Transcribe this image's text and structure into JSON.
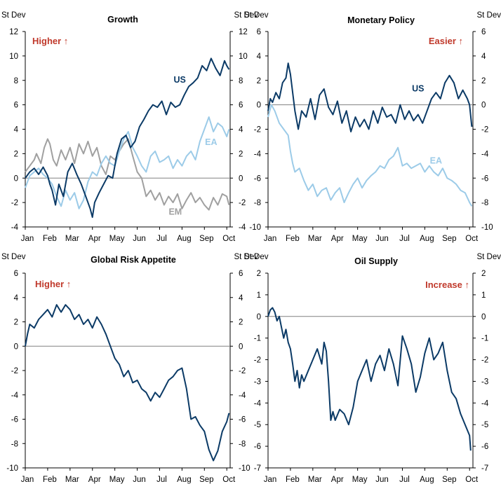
{
  "colors": {
    "us": "#0b3a66",
    "ea": "#9ccbe8",
    "em": "#a0a0a0",
    "axis": "#000000",
    "zero": "#808080",
    "annotation": "#c0392b"
  },
  "chart_data": [
    {
      "type": "line",
      "title": "Growth",
      "ylabel_left": "St Dev",
      "ylabel_right": "St Dev",
      "ylim": [
        -4,
        12
      ],
      "yticks": [
        -4,
        -2,
        0,
        2,
        4,
        6,
        8,
        10,
        12
      ],
      "months": [
        "Jan",
        "Feb",
        "Mar",
        "Apr",
        "May",
        "Jun",
        "Jul",
        "Aug",
        "Sep",
        "Oct"
      ],
      "annotation": "Higher ↑",
      "series": [
        {
          "name": "EM",
          "color": "#a0a0a0",
          "x": [
            0,
            0.2,
            0.4,
            0.5,
            0.7,
            0.85,
            1.0,
            1.1,
            1.25,
            1.4,
            1.6,
            1.8,
            2.0,
            2.2,
            2.4,
            2.6,
            2.8,
            3.0,
            3.2,
            3.4,
            3.6,
            3.8,
            4.0,
            4.2,
            4.4,
            4.6,
            4.8,
            5.0,
            5.2,
            5.4,
            5.6,
            5.8,
            6.0,
            6.2,
            6.4,
            6.6,
            6.8,
            7.0,
            7.2,
            7.4,
            7.6,
            7.8,
            8.0,
            8.2,
            8.4,
            8.6,
            8.8,
            9.0,
            9.1
          ],
          "values": [
            0.5,
            1.0,
            1.5,
            2.0,
            1.2,
            2.5,
            3.2,
            2.8,
            1.5,
            1.0,
            2.3,
            1.5,
            2.5,
            1.2,
            2.8,
            2.0,
            3.0,
            1.8,
            2.5,
            1.0,
            0.3,
            1.8,
            1.5,
            2.2,
            2.8,
            3.2,
            1.8,
            0.5,
            0.0,
            -1.5,
            -1.0,
            -1.8,
            -1.2,
            -2.2,
            -1.5,
            -2.0,
            -1.3,
            -2.5,
            -1.8,
            -1.2,
            -2.0,
            -1.6,
            -2.2,
            -2.6,
            -1.6,
            -2.2,
            -1.3,
            -1.5,
            -2.2
          ]
        },
        {
          "name": "EA",
          "color": "#9ccbe8",
          "x": [
            0,
            0.2,
            0.4,
            0.6,
            0.8,
            1.0,
            1.2,
            1.4,
            1.6,
            1.8,
            2.0,
            2.2,
            2.4,
            2.6,
            2.8,
            3.0,
            3.2,
            3.4,
            3.6,
            3.8,
            4.0,
            4.2,
            4.4,
            4.6,
            4.8,
            5.0,
            5.2,
            5.4,
            5.6,
            5.8,
            6.0,
            6.2,
            6.4,
            6.6,
            6.8,
            7.0,
            7.2,
            7.4,
            7.6,
            7.8,
            8.0,
            8.2,
            8.4,
            8.6,
            8.8,
            9.0,
            9.1
          ],
          "values": [
            -0.8,
            0.2,
            0.5,
            0.8,
            0.3,
            0.0,
            -0.5,
            -1.5,
            -2.3,
            -1.0,
            -1.8,
            -1.2,
            -2.5,
            -1.8,
            -0.3,
            0.5,
            0.2,
            1.2,
            1.8,
            1.2,
            1.0,
            2.2,
            3.2,
            3.8,
            2.5,
            1.8,
            1.0,
            0.5,
            1.8,
            2.2,
            1.3,
            1.5,
            1.8,
            0.8,
            1.5,
            1.0,
            1.8,
            2.2,
            1.5,
            3.0,
            4.0,
            5.0,
            3.8,
            4.5,
            4.2,
            3.4,
            4.0
          ]
        },
        {
          "name": "US",
          "color": "#0b3a66",
          "x": [
            0,
            0.2,
            0.4,
            0.6,
            0.8,
            1.0,
            1.1,
            1.2,
            1.35,
            1.5,
            1.7,
            1.9,
            2.1,
            2.3,
            2.5,
            2.7,
            2.9,
            3.0,
            3.1,
            3.3,
            3.5,
            3.7,
            3.9,
            4.1,
            4.3,
            4.5,
            4.7,
            4.9,
            5.1,
            5.3,
            5.5,
            5.7,
            5.9,
            6.1,
            6.3,
            6.5,
            6.7,
            6.9,
            7.1,
            7.3,
            7.5,
            7.7,
            7.9,
            8.1,
            8.3,
            8.5,
            8.7,
            8.9,
            9.0,
            9.1
          ],
          "values": [
            0.0,
            0.5,
            0.8,
            0.3,
            0.9,
            0.2,
            -0.5,
            -1.0,
            -2.2,
            -0.5,
            -1.5,
            0.5,
            1.2,
            0.3,
            -0.5,
            -1.5,
            -2.5,
            -3.2,
            -2.0,
            -1.2,
            -0.5,
            0.2,
            0.0,
            2.0,
            3.2,
            3.5,
            2.5,
            3.0,
            4.2,
            4.8,
            5.5,
            6.0,
            5.8,
            6.3,
            5.2,
            6.2,
            5.8,
            6.0,
            6.8,
            7.5,
            7.8,
            8.2,
            9.2,
            8.8,
            9.8,
            9.0,
            8.4,
            9.6,
            9.2,
            8.9
          ]
        }
      ],
      "labels": [
        {
          "text": "US",
          "x": 6.9,
          "y": 7.8
        },
        {
          "text": "EA",
          "x": 8.3,
          "y": 2.7
        },
        {
          "text": "EM",
          "x": 6.7,
          "y": -3.0
        }
      ]
    },
    {
      "type": "line",
      "title": "Monetary Policy",
      "ylabel_left": "St Dev",
      "ylabel_right": "St Dev",
      "ylim": [
        -10,
        6
      ],
      "yticks": [
        -10,
        -8,
        -6,
        -4,
        -2,
        0,
        2,
        4,
        6
      ],
      "months": [
        "Jan",
        "Feb",
        "Mar",
        "Apr",
        "May",
        "Jun",
        "Jul",
        "Aug",
        "Sep",
        "Oct"
      ],
      "annotation": "Easier ↑",
      "series": [
        {
          "name": "EA",
          "color": "#9ccbe8",
          "x": [
            0,
            0.15,
            0.3,
            0.5,
            0.7,
            0.9,
            1.0,
            1.1,
            1.2,
            1.4,
            1.6,
            1.8,
            2.0,
            2.2,
            2.4,
            2.6,
            2.8,
            3.0,
            3.2,
            3.4,
            3.6,
            3.8,
            4.0,
            4.2,
            4.4,
            4.6,
            4.8,
            5.0,
            5.2,
            5.4,
            5.6,
            5.8,
            6.0,
            6.2,
            6.4,
            6.6,
            6.8,
            7.0,
            7.2,
            7.4,
            7.6,
            7.8,
            8.0,
            8.2,
            8.4,
            8.6,
            8.8,
            9.0,
            9.1
          ],
          "values": [
            -1.0,
            0.0,
            -0.5,
            -1.5,
            -2.0,
            -2.5,
            -3.8,
            -4.8,
            -5.5,
            -5.2,
            -6.2,
            -7.0,
            -6.5,
            -7.5,
            -7.0,
            -6.8,
            -7.8,
            -7.2,
            -6.8,
            -8.0,
            -7.2,
            -6.5,
            -6.0,
            -6.8,
            -6.2,
            -5.8,
            -5.5,
            -5.0,
            -5.2,
            -4.5,
            -4.2,
            -3.5,
            -5.0,
            -4.8,
            -5.2,
            -5.0,
            -4.8,
            -5.5,
            -5.0,
            -5.5,
            -5.8,
            -5.2,
            -6.0,
            -6.2,
            -6.5,
            -7.0,
            -7.2,
            -8.0,
            -8.3
          ]
        },
        {
          "name": "US",
          "color": "#0b3a66",
          "x": [
            0,
            0.1,
            0.2,
            0.35,
            0.5,
            0.65,
            0.8,
            0.9,
            1.0,
            1.1,
            1.2,
            1.35,
            1.5,
            1.7,
            1.9,
            2.1,
            2.3,
            2.5,
            2.7,
            2.9,
            3.1,
            3.3,
            3.5,
            3.7,
            3.9,
            4.1,
            4.3,
            4.5,
            4.7,
            4.9,
            5.1,
            5.3,
            5.5,
            5.7,
            5.9,
            6.1,
            6.3,
            6.5,
            6.7,
            6.9,
            7.1,
            7.3,
            7.5,
            7.7,
            7.9,
            8.1,
            8.3,
            8.5,
            8.7,
            8.9,
            9.0,
            9.1
          ],
          "values": [
            -0.5,
            0.5,
            0.2,
            1.0,
            0.5,
            1.8,
            2.2,
            3.4,
            2.5,
            1.0,
            -0.5,
            -2.0,
            -0.5,
            -1.0,
            0.5,
            -1.2,
            0.8,
            1.3,
            -0.2,
            -0.8,
            0.3,
            -1.5,
            -0.5,
            -2.2,
            -1.0,
            -1.8,
            -1.2,
            -2.0,
            -0.5,
            -1.5,
            -0.2,
            -1.0,
            -0.8,
            -1.5,
            0.0,
            -1.2,
            -0.5,
            -1.3,
            -0.8,
            -1.5,
            -0.5,
            0.5,
            1.0,
            0.5,
            1.8,
            2.4,
            1.8,
            0.5,
            1.2,
            0.5,
            0.0,
            -1.8
          ]
        }
      ],
      "labels": [
        {
          "text": "US",
          "x": 6.7,
          "y": 1.1
        },
        {
          "text": "EA",
          "x": 7.5,
          "y": -4.8
        }
      ]
    },
    {
      "type": "line",
      "title": "Global Risk  Appetite",
      "ylabel_left": "St Dev",
      "ylabel_right": "St Dev",
      "ylim": [
        -10,
        6
      ],
      "yticks": [
        -10,
        -8,
        -6,
        -4,
        -2,
        0,
        2,
        4,
        6
      ],
      "months": [
        "Jan",
        "Feb",
        "Mar",
        "Apr",
        "May",
        "Jun",
        "Jul",
        "Aug",
        "Sep",
        "Oct"
      ],
      "annotation": "Higher ↑",
      "series": [
        {
          "name": "Global Risk Appetite",
          "color": "#0b3a66",
          "x": [
            0,
            0.1,
            0.2,
            0.4,
            0.6,
            0.8,
            1.0,
            1.2,
            1.4,
            1.6,
            1.8,
            2.0,
            2.2,
            2.4,
            2.6,
            2.8,
            3.0,
            3.2,
            3.4,
            3.6,
            3.8,
            4.0,
            4.2,
            4.4,
            4.6,
            4.8,
            5.0,
            5.2,
            5.4,
            5.6,
            5.8,
            6.0,
            6.2,
            6.4,
            6.6,
            6.8,
            7.0,
            7.2,
            7.4,
            7.6,
            7.8,
            8.0,
            8.2,
            8.4,
            8.6,
            8.8,
            9.0,
            9.1
          ],
          "values": [
            0.0,
            1.0,
            1.8,
            1.5,
            2.2,
            2.6,
            3.0,
            2.4,
            3.4,
            2.8,
            3.4,
            3.0,
            2.2,
            2.6,
            1.8,
            2.2,
            1.5,
            2.4,
            1.8,
            1.0,
            0.0,
            -1.0,
            -1.5,
            -2.5,
            -2.0,
            -3.0,
            -2.8,
            -3.5,
            -3.8,
            -4.5,
            -3.8,
            -4.2,
            -3.5,
            -2.8,
            -2.5,
            -2.0,
            -1.8,
            -3.5,
            -6.0,
            -5.8,
            -6.5,
            -7.0,
            -8.5,
            -9.4,
            -8.6,
            -7.0,
            -6.2,
            -5.5
          ]
        }
      ],
      "labels": []
    },
    {
      "type": "line",
      "title": "Oil Supply",
      "ylabel_left": "St Dev",
      "ylabel_right": "St Dev",
      "ylim": [
        -7,
        2
      ],
      "yticks": [
        -7,
        -6,
        -5,
        -4,
        -3,
        -2,
        -1,
        0,
        1,
        2
      ],
      "months": [
        "Jan",
        "Feb",
        "Mar",
        "Apr",
        "May",
        "Jun",
        "Jul",
        "Aug",
        "Sep",
        "Oct"
      ],
      "annotation": "Increase ↑",
      "series": [
        {
          "name": "Oil Supply",
          "color": "#0b3a66",
          "x": [
            0,
            0.1,
            0.2,
            0.3,
            0.4,
            0.5,
            0.6,
            0.7,
            0.8,
            0.9,
            1.0,
            1.1,
            1.2,
            1.3,
            1.4,
            1.5,
            1.6,
            1.8,
            2.0,
            2.2,
            2.4,
            2.5,
            2.6,
            2.7,
            2.8,
            2.9,
            3.0,
            3.2,
            3.4,
            3.6,
            3.8,
            4.0,
            4.2,
            4.4,
            4.6,
            4.8,
            5.0,
            5.2,
            5.4,
            5.6,
            5.8,
            6.0,
            6.2,
            6.4,
            6.6,
            6.8,
            7.0,
            7.2,
            7.4,
            7.6,
            7.8,
            8.0,
            8.2,
            8.4,
            8.6,
            8.8,
            9.0,
            9.05
          ],
          "values": [
            0.0,
            0.3,
            0.4,
            0.2,
            -0.2,
            0.0,
            -0.5,
            -1.0,
            -0.6,
            -1.2,
            -1.5,
            -2.2,
            -3.0,
            -2.5,
            -3.3,
            -2.7,
            -3.0,
            -2.5,
            -2.0,
            -1.5,
            -2.2,
            -1.2,
            -1.6,
            -3.0,
            -4.8,
            -4.4,
            -4.8,
            -4.3,
            -4.5,
            -5.0,
            -4.2,
            -3.0,
            -2.5,
            -2.0,
            -3.0,
            -2.2,
            -1.8,
            -2.5,
            -1.5,
            -2.2,
            -3.2,
            -0.9,
            -1.5,
            -2.2,
            -3.5,
            -2.8,
            -1.7,
            -1.0,
            -2.0,
            -1.7,
            -1.2,
            -2.5,
            -3.5,
            -3.8,
            -4.5,
            -5.0,
            -5.5,
            -6.2
          ]
        }
      ],
      "labels": []
    }
  ]
}
